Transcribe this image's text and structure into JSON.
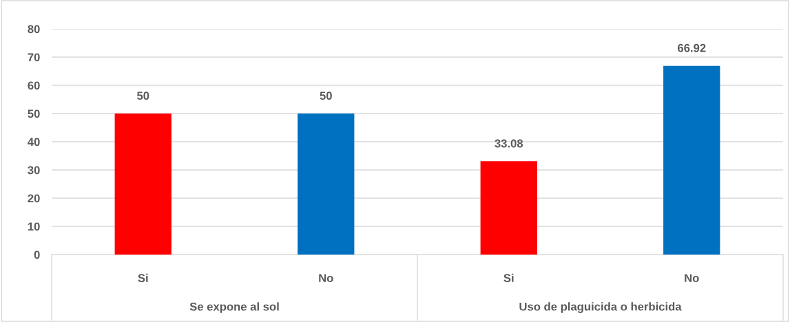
{
  "chart_data": {
    "type": "bar",
    "categories": [
      "Si",
      "No",
      "Si",
      "No"
    ],
    "values": [
      50,
      50,
      33.08,
      66.92
    ],
    "colors": [
      "#ff0000",
      "#0070c0",
      "#ff0000",
      "#0070c0"
    ],
    "data_labels": true,
    "ylim": [
      0,
      80
    ],
    "yticks": [
      0,
      10,
      20,
      30,
      40,
      50,
      60,
      70,
      80
    ],
    "grid": "y",
    "annotations": [
      "Se expone al sol",
      "Uso de plaguicida o herbicida"
    ]
  }
}
